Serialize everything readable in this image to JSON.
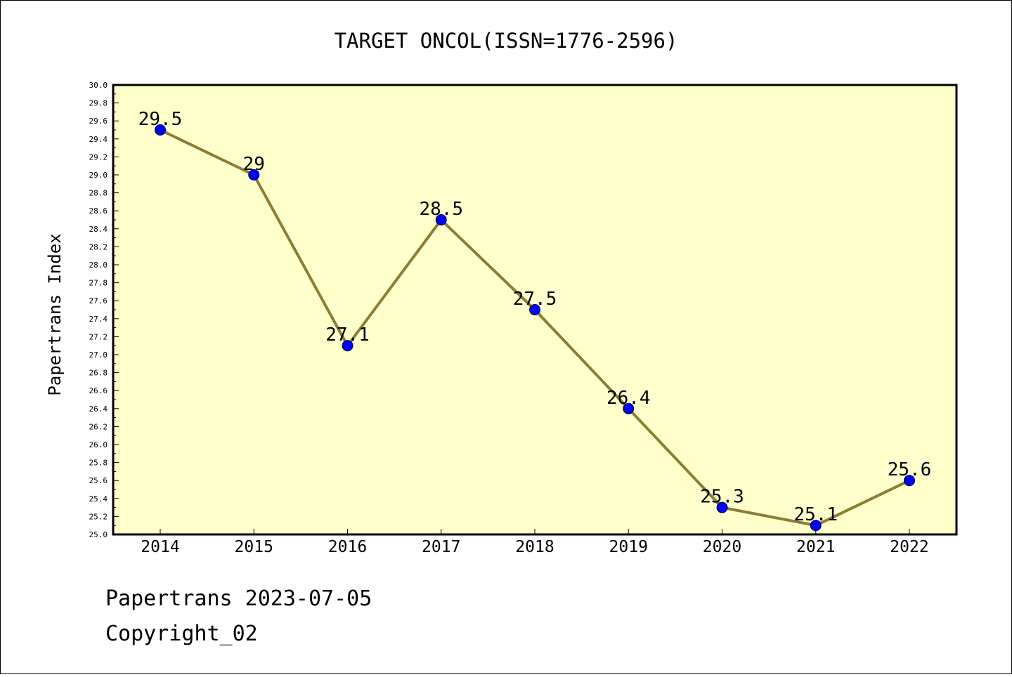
{
  "chart_data": {
    "type": "line",
    "title": "TARGET ONCOL(ISSN=1776-2596)",
    "xlabel": "",
    "ylabel": "Papertrans Index",
    "categories": [
      "2014",
      "2015",
      "2016",
      "2017",
      "2018",
      "2019",
      "2020",
      "2021",
      "2022"
    ],
    "series": [
      {
        "values": [
          29.5,
          29.0,
          27.1,
          28.5,
          27.5,
          26.4,
          25.3,
          25.1,
          25.6
        ],
        "point_labels": [
          "29.5",
          "29",
          "27.1",
          "28.5",
          "27.5",
          "26.4",
          "25.3",
          "25.1",
          "25.6"
        ]
      }
    ],
    "ylim": [
      25.0,
      30.0
    ],
    "yticks": [
      "25.0",
      "25.2",
      "25.4",
      "25.6",
      "25.8",
      "26.0",
      "26.2",
      "26.4",
      "26.6",
      "26.8",
      "27.0",
      "27.2",
      "27.4",
      "27.6",
      "27.8",
      "28.0",
      "28.2",
      "28.4",
      "28.6",
      "28.8",
      "29.0",
      "29.2",
      "29.4",
      "29.6",
      "29.8",
      "30.0"
    ],
    "grid": false,
    "legend": "none",
    "colors": {
      "plot_background": "#ffffcc",
      "line": "#8b7d35",
      "marker": "#0000ff"
    }
  },
  "footer": {
    "line1": "Papertrans 2023-07-05",
    "line2": "Copyright_02"
  }
}
